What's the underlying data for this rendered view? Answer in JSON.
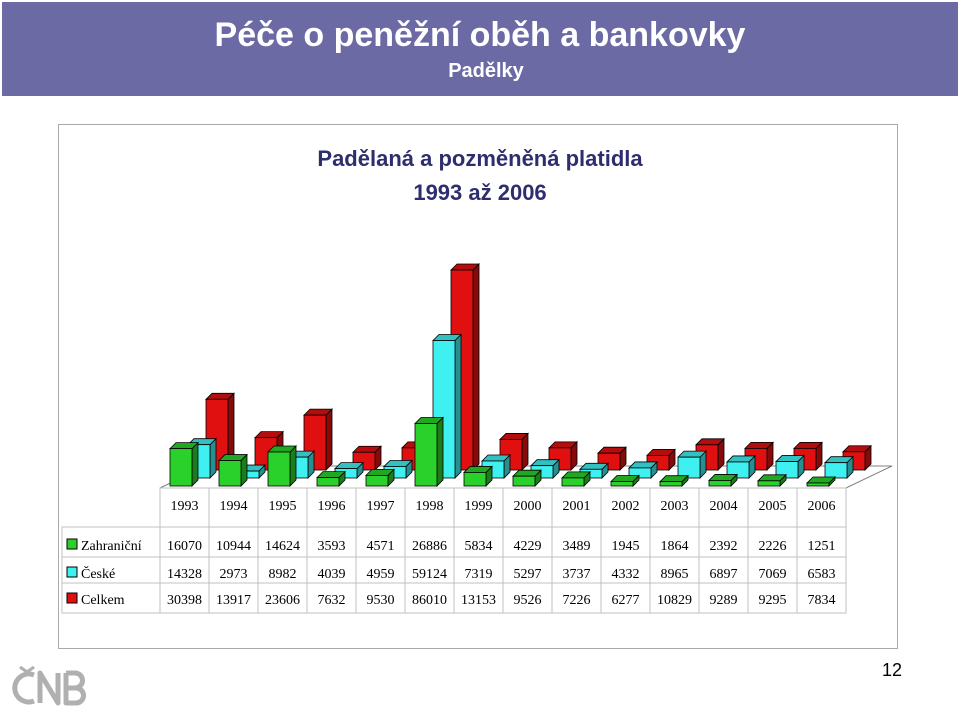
{
  "slide": {
    "title": "Péče o peněžní oběh a bankovky",
    "subtitle": "Padělky",
    "page_number": "12"
  },
  "colors": {
    "header": "#6b6aa5",
    "zahranicni": "#2bd12b",
    "ceske": "#3ff0f0",
    "celkem": "#e01010"
  },
  "chart_data": {
    "type": "bar",
    "title": "Padělaná a pozměněná platidla",
    "subtitle": "1993 až 2006",
    "categories": [
      "1993",
      "1994",
      "1995",
      "1996",
      "1997",
      "1998",
      "1999",
      "2000",
      "2001",
      "2002",
      "2003",
      "2004",
      "2005",
      "2006"
    ],
    "series": [
      {
        "name": "Zahraniční",
        "color": "#2bd12b",
        "values": [
          16070,
          10944,
          14624,
          3593,
          4571,
          26886,
          5834,
          4229,
          3489,
          1945,
          1864,
          2392,
          2226,
          1251
        ]
      },
      {
        "name": "České",
        "color": "#3ff0f0",
        "values": [
          14328,
          2973,
          8982,
          4039,
          4959,
          59124,
          7319,
          5297,
          3737,
          4332,
          8965,
          6897,
          7069,
          6583
        ]
      },
      {
        "name": "Celkem",
        "color": "#e01010",
        "values": [
          30398,
          13917,
          23606,
          7632,
          9530,
          86010,
          13153,
          9526,
          7226,
          6277,
          10829,
          9289,
          9295,
          7834
        ]
      }
    ],
    "legend": "data-table",
    "style": "3d-column"
  }
}
